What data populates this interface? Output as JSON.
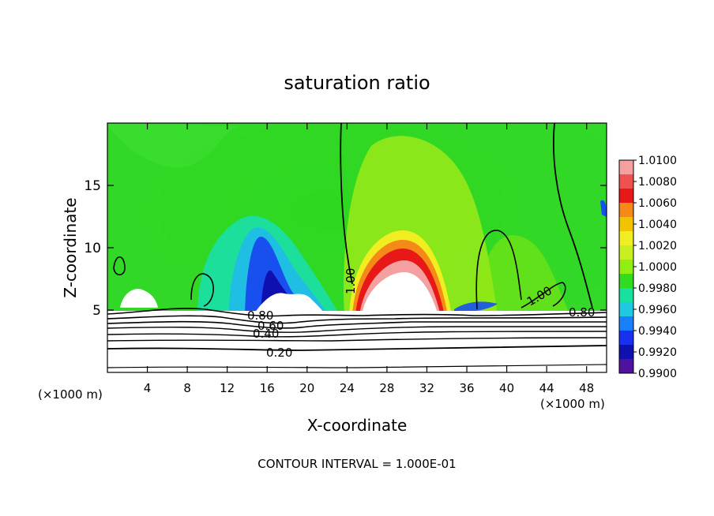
{
  "chart_data": {
    "type": "heatmap",
    "title": "saturation ratio",
    "xlabel": "X-coordinate",
    "ylabel": "Z-coordinate",
    "x_unit_left": "(×1000 m)",
    "x_unit_right": "(×1000 m)",
    "footer": "CONTOUR INTERVAL = 1.000E-01",
    "xlim": [
      0,
      50
    ],
    "ylim": [
      0,
      20
    ],
    "x_ticks": [
      4,
      8,
      12,
      16,
      20,
      24,
      28,
      32,
      36,
      40,
      44,
      48
    ],
    "y_ticks": [
      5,
      10,
      15
    ],
    "colorbar": {
      "levels": [
        "1.0100",
        "1.0080",
        "1.0060",
        "1.0040",
        "1.0020",
        "1.0000",
        "0.9980",
        "0.9960",
        "0.9940",
        "0.9920",
        "0.9900"
      ],
      "colors": [
        "#f4a0a0",
        "#f05050",
        "#e81818",
        "#f58a18",
        "#f2c400",
        "#f0ee20",
        "#c8f020",
        "#90ee10",
        "#30dc20",
        "#18e0a0",
        "#20c8e0",
        "#1880ff",
        "#1830f0",
        "#1010b0",
        "#5010a0"
      ]
    },
    "contour_labels": [
      {
        "text": "1.00",
        "x": 24.5,
        "z": 6.5,
        "rotate": -90
      },
      {
        "text": "1.00",
        "x": 42.5,
        "z": 5.6,
        "rotate": -30
      },
      {
        "text": "0.80",
        "x": 15.3,
        "z": 4.6,
        "rotate": 0
      },
      {
        "text": "0.60",
        "x": 16.2,
        "z": 3.9,
        "rotate": 0
      },
      {
        "text": "0.40",
        "x": 15.8,
        "z": 3.1,
        "rotate": 0
      },
      {
        "text": "0.20",
        "x": 17.2,
        "z": 1.6,
        "rotate": 0
      },
      {
        "text": "0.80",
        "x": 47.5,
        "z": 4.8,
        "rotate": 0
      }
    ]
  }
}
